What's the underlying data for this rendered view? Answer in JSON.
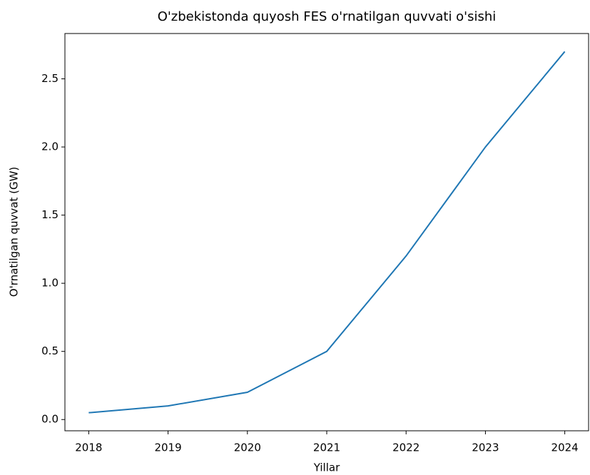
{
  "chart_data": {
    "type": "line",
    "title": "O'zbekistonda quyosh FES o'rnatilgan quvvati o'sishi",
    "xlabel": "Yillar",
    "ylabel": "O'rnatilgan quvvat (GW)",
    "x": [
      2018,
      2019,
      2020,
      2021,
      2022,
      2023,
      2024
    ],
    "series": [
      {
        "color": "#1f77b4",
        "values": [
          0.05,
          0.1,
          0.2,
          0.5,
          1.2,
          2.0,
          2.7
        ]
      }
    ],
    "xlim": [
      2017.7,
      2024.3
    ],
    "xticks": [
      2018,
      2019,
      2020,
      2021,
      2022,
      2023,
      2024
    ],
    "ylim": [
      -0.0825,
      2.8325
    ],
    "yticks": [
      {
        "value": 0,
        "label": "0.0"
      },
      0.5,
      {
        "value": 1,
        "label": "1.0"
      },
      1.5,
      {
        "value": 2,
        "label": "2.0"
      },
      2.5
    ]
  }
}
